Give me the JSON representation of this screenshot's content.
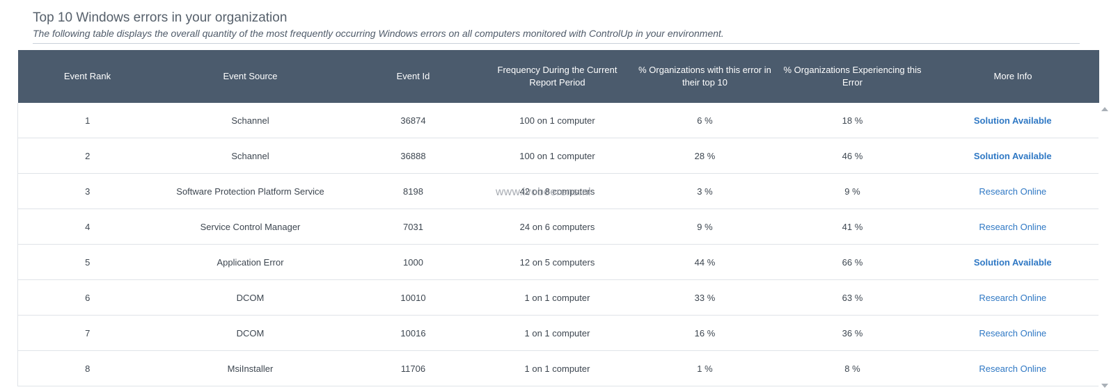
{
  "header": {
    "title": "Top 10 Windows errors in your organization",
    "subtitle": "The following table displays the overall quantity of the most frequently occurring Windows errors on all computers monitored with ControlUp in your environment."
  },
  "table": {
    "columns": [
      "Event Rank",
      "Event Source",
      "Event Id",
      "Frequency During the Current Report Period",
      "% Organizations with this error in their top 10",
      "% Organizations Experiencing this Error",
      "More Info"
    ],
    "rows": [
      {
        "rank": "1",
        "source": "Schannel",
        "event_id": "36874",
        "frequency": "100 on 1 computer",
        "pct_top10": "6 %",
        "pct_experiencing": "18 %",
        "more_info": "Solution Available",
        "more_info_type": "solution"
      },
      {
        "rank": "2",
        "source": "Schannel",
        "event_id": "36888",
        "frequency": "100 on 1 computer",
        "pct_top10": "28 %",
        "pct_experiencing": "46 %",
        "more_info": "Solution Available",
        "more_info_type": "solution"
      },
      {
        "rank": "3",
        "source": "Software Protection Platform Service",
        "event_id": "8198",
        "frequency": "42 on 8 computers",
        "pct_top10": "3 %",
        "pct_experiencing": "9 %",
        "more_info": "Research Online",
        "more_info_type": "research"
      },
      {
        "rank": "4",
        "source": "Service Control Manager",
        "event_id": "7031",
        "frequency": "24 on 6 computers",
        "pct_top10": "9 %",
        "pct_experiencing": "41 %",
        "more_info": "Research Online",
        "more_info_type": "research"
      },
      {
        "rank": "5",
        "source": "Application Error",
        "event_id": "1000",
        "frequency": "12 on 5 computers",
        "pct_top10": "44 %",
        "pct_experiencing": "66 %",
        "more_info": "Solution Available",
        "more_info_type": "solution"
      },
      {
        "rank": "6",
        "source": "DCOM",
        "event_id": "10010",
        "frequency": "1 on 1 computer",
        "pct_top10": "33 %",
        "pct_experiencing": "63 %",
        "more_info": "Research Online",
        "more_info_type": "research"
      },
      {
        "rank": "7",
        "source": "DCOM",
        "event_id": "10016",
        "frequency": "1 on 1 computer",
        "pct_top10": "16 %",
        "pct_experiencing": "36 %",
        "more_info": "Research Online",
        "more_info_type": "research"
      },
      {
        "rank": "8",
        "source": "MsiInstaller",
        "event_id": "11706",
        "frequency": "1 on 1 computer",
        "pct_top10": "1 %",
        "pct_experiencing": "8 %",
        "more_info": "Research Online",
        "more_info_type": "research"
      }
    ]
  },
  "watermark": "www.ivobeerens.nl",
  "colors": {
    "header_bg": "#4b5b6d",
    "link": "#2f78c4"
  }
}
